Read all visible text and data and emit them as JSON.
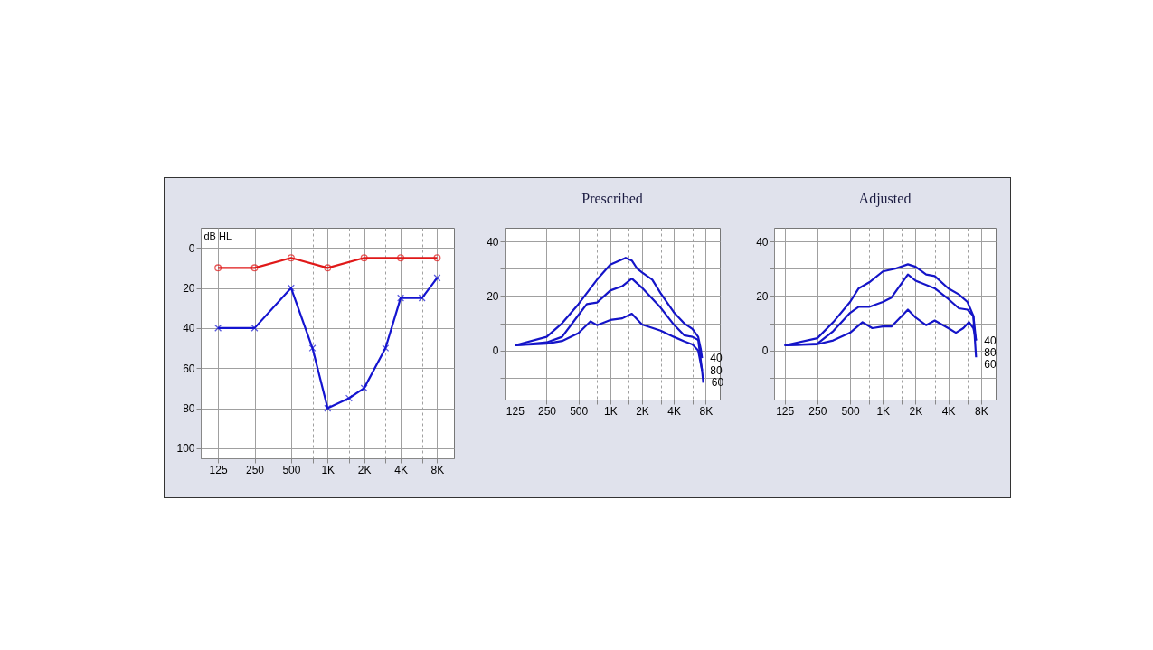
{
  "chart_data": [
    {
      "type": "line",
      "ylabel": "dB HL",
      "xlim": [
        90,
        11000
      ],
      "ylim": [
        105,
        -10
      ],
      "xticks": [
        125,
        250,
        500,
        {
          "value": 750,
          "label": null
        },
        {
          "value": 1000,
          "label": "1K"
        },
        {
          "value": 1500,
          "label": null
        },
        {
          "value": 2000,
          "label": "2K"
        },
        {
          "value": 3000,
          "label": null
        },
        {
          "value": 4000,
          "label": "4K"
        },
        {
          "value": 6000,
          "label": null
        },
        {
          "value": 8000,
          "label": "8K"
        }
      ],
      "yticks": [
        0,
        20,
        40,
        60,
        80,
        100
      ],
      "log": "x",
      "grid": true,
      "series": [
        {
          "color": "#e01818",
          "marker": "circle",
          "x": [
            125,
            250,
            500,
            1000,
            2000,
            4000,
            8000
          ],
          "values": [
            10,
            10,
            5,
            10,
            5,
            5,
            5
          ]
        },
        {
          "color": "#1414d0",
          "marker": "cross",
          "x": [
            125,
            250,
            500,
            750,
            1000,
            1500,
            2000,
            3000,
            4000,
            6000,
            8000
          ],
          "values": [
            40,
            40,
            20,
            50,
            80,
            75,
            70,
            50,
            25,
            25,
            15
          ]
        }
      ]
    },
    {
      "type": "line",
      "title": "Prescribed",
      "xlim": [
        100,
        10900
      ],
      "ylim": [
        -18,
        45
      ],
      "xticks": [
        125,
        250,
        500,
        {
          "value": 750,
          "label": null
        },
        {
          "value": 1000,
          "label": "1K"
        },
        {
          "value": 1500,
          "label": null
        },
        {
          "value": 2000,
          "label": "2K"
        },
        {
          "value": 3000,
          "label": null
        },
        {
          "value": 4000,
          "label": "4K"
        },
        {
          "value": 6000,
          "label": null
        },
        {
          "value": 8000,
          "label": "8K"
        }
      ],
      "yticks": [
        {
          "value": -10,
          "label": null
        },
        0,
        {
          "value": 10,
          "label": null
        },
        20,
        {
          "value": 30,
          "label": null
        },
        40
      ],
      "log": "x",
      "grid": true,
      "series": [
        {
          "name": "40",
          "color": "#1414c8",
          "x": [
            125,
            250,
            350,
            500,
            750,
            1000,
            1400,
            1600,
            1800,
            2000,
            2500,
            3000,
            4000,
            5000,
            6000,
            6800,
            7200,
            7400
          ],
          "values": [
            1.9,
            5,
            10,
            17,
            26,
            31.5,
            34,
            33,
            30,
            28.6,
            26,
            21,
            14,
            10,
            7.9,
            5,
            0.5,
            -2.8
          ]
        },
        {
          "name": "60",
          "color": "#1414c8",
          "x": [
            125,
            250,
            350,
            500,
            600,
            750,
            1000,
            1300,
            1600,
            2000,
            3000,
            4000,
            5000,
            6000,
            6800,
            7400,
            7600
          ],
          "values": [
            1.9,
            3,
            5,
            13,
            17,
            17.6,
            22,
            23.6,
            26.4,
            23,
            15.7,
            9.5,
            5.6,
            5,
            3.9,
            -7.3,
            -11.8
          ]
        },
        {
          "name": "80",
          "color": "#1414c8",
          "x": [
            125,
            250,
            350,
            500,
            650,
            750,
            1000,
            1300,
            1600,
            2000,
            3000,
            4000,
            5000,
            6000,
            6800,
            7400
          ],
          "values": [
            1.9,
            2.5,
            3.5,
            6.4,
            10.7,
            9.3,
            11.2,
            11.8,
            13.5,
            9.5,
            7.3,
            5,
            3.4,
            2.2,
            0,
            -7.3
          ]
        }
      ]
    },
    {
      "type": "line",
      "title": "Adjusted",
      "xlim": [
        100,
        10900
      ],
      "ylim": [
        -18,
        45
      ],
      "xticks": [
        125,
        250,
        500,
        {
          "value": 750,
          "label": null
        },
        {
          "value": 1000,
          "label": "1K"
        },
        {
          "value": 1500,
          "label": null
        },
        {
          "value": 2000,
          "label": "2K"
        },
        {
          "value": 3000,
          "label": null
        },
        {
          "value": 4000,
          "label": "4K"
        },
        {
          "value": 6000,
          "label": null
        },
        {
          "value": 8000,
          "label": "8K"
        }
      ],
      "yticks": [
        {
          "value": -10,
          "label": null
        },
        0,
        {
          "value": 10,
          "label": null
        },
        20,
        {
          "value": 30,
          "label": null
        },
        40
      ],
      "log": "x",
      "grid": true,
      "series": [
        {
          "name": "40",
          "color": "#1414c8",
          "x": [
            125,
            250,
            350,
            500,
            600,
            750,
            1000,
            1300,
            1700,
            2000,
            2500,
            3000,
            4000,
            5000,
            6000,
            6800,
            7200
          ],
          "values": [
            1.9,
            4.5,
            10.4,
            17.8,
            22.8,
            25,
            29,
            30,
            31.6,
            30.7,
            27.9,
            27.3,
            22.8,
            20.6,
            17.8,
            12.7,
            3.7
          ]
        },
        {
          "name": "60",
          "color": "#1414c8",
          "x": [
            125,
            250,
            350,
            500,
            600,
            750,
            1000,
            1200,
            1700,
            2000,
            3000,
            4000,
            5000,
            6000,
            6800,
            7200
          ],
          "values": [
            1.9,
            2.5,
            7.1,
            13.8,
            16,
            16,
            17.8,
            19.4,
            27.9,
            25.6,
            22.8,
            18.9,
            15.5,
            15,
            12.7,
            -2.5
          ]
        },
        {
          "name": "80",
          "color": "#1414c8",
          "x": [
            125,
            250,
            350,
            500,
            650,
            800,
            1000,
            1200,
            1700,
            2000,
            2500,
            3000,
            4000,
            4700,
            5500,
            6200,
            6800,
            7200
          ],
          "values": [
            1.9,
            2.3,
            3.7,
            6.5,
            10.4,
            8.2,
            8.8,
            8.8,
            15,
            12.1,
            9.3,
            11,
            8.2,
            6.5,
            8.2,
            10.4,
            8.2,
            3.7
          ]
        }
      ]
    }
  ]
}
